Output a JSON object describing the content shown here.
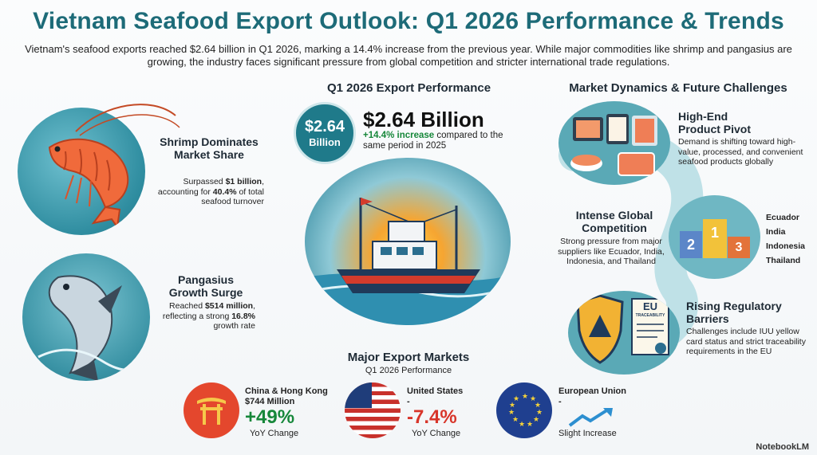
{
  "header": {
    "title": "Vietnam Seafood Export Outlook: Q1 2026 Performance & Trends",
    "subtitle": "Vietnam's seafood exports reached $2.64 billion in Q1 2026, marking a 14.4% increase from the previous year. While major commodities like shrimp and pangasius are growing, the industry faces significant pressure from global competition and stricter international trade regulations."
  },
  "left": {
    "shrimp": {
      "title": "Shrimp Dominates Market Share",
      "text_pre": "Surpassed ",
      "text_bold": "$1 billion",
      "text_mid": ", accounting for ",
      "text_bold2": "40.4%",
      "text_post": " of total seafood turnover"
    },
    "pangasius": {
      "title": "Pangasius Growth Surge",
      "text_pre": "Reached ",
      "text_bold": "$514 million",
      "text_mid": ", reflecting a strong ",
      "text_bold2": "16.8%",
      "text_post": " growth rate"
    }
  },
  "center": {
    "heading": "Q1 2026 Export Performance",
    "badge_value": "$2.64",
    "badge_unit": "Billion",
    "big_value": "$2.64 Billion",
    "increase": "+14.4% increase",
    "increase_rest": " compared to the same period in 2025"
  },
  "markets": {
    "heading": "Major Export Markets",
    "subheading": "Q1 2026 Performance",
    "items": [
      {
        "name": "China & Hong Kong",
        "value": "$744 Million",
        "change": "+49%",
        "note": "YoY Change"
      },
      {
        "name": "United States",
        "value": "-",
        "change": "-7.4%",
        "note": "YoY Change"
      },
      {
        "name": "European Union",
        "value": "-",
        "change": "",
        "note": "Slight Increase"
      }
    ]
  },
  "right": {
    "heading": "Market Dynamics & Future Challenges",
    "pivot": {
      "title": "High-End Product Pivot",
      "text": "Demand is shifting toward high-value, processed, and convenient seafood products globally"
    },
    "competition": {
      "title": "Intense Global Competition",
      "text": "Strong pressure from major suppliers like Ecuador, India, Indonesia, and Thailand",
      "countries": [
        "Ecuador",
        "India",
        "Indonesia",
        "Thailand"
      ],
      "podium": [
        "2",
        "1",
        "3"
      ]
    },
    "regulatory": {
      "title": "Rising Regulatory Barriers",
      "text": "Challenges include IUU yellow card status and strict traceability requirements in the EU",
      "doc_title": "EU",
      "doc_sub": "TRACEABILITY"
    }
  },
  "brand": "NotebookLM",
  "colors": {
    "title": "#1d6b78",
    "positive": "#16873a",
    "negative": "#d8352a",
    "teal_bg": "#3d98a8"
  }
}
